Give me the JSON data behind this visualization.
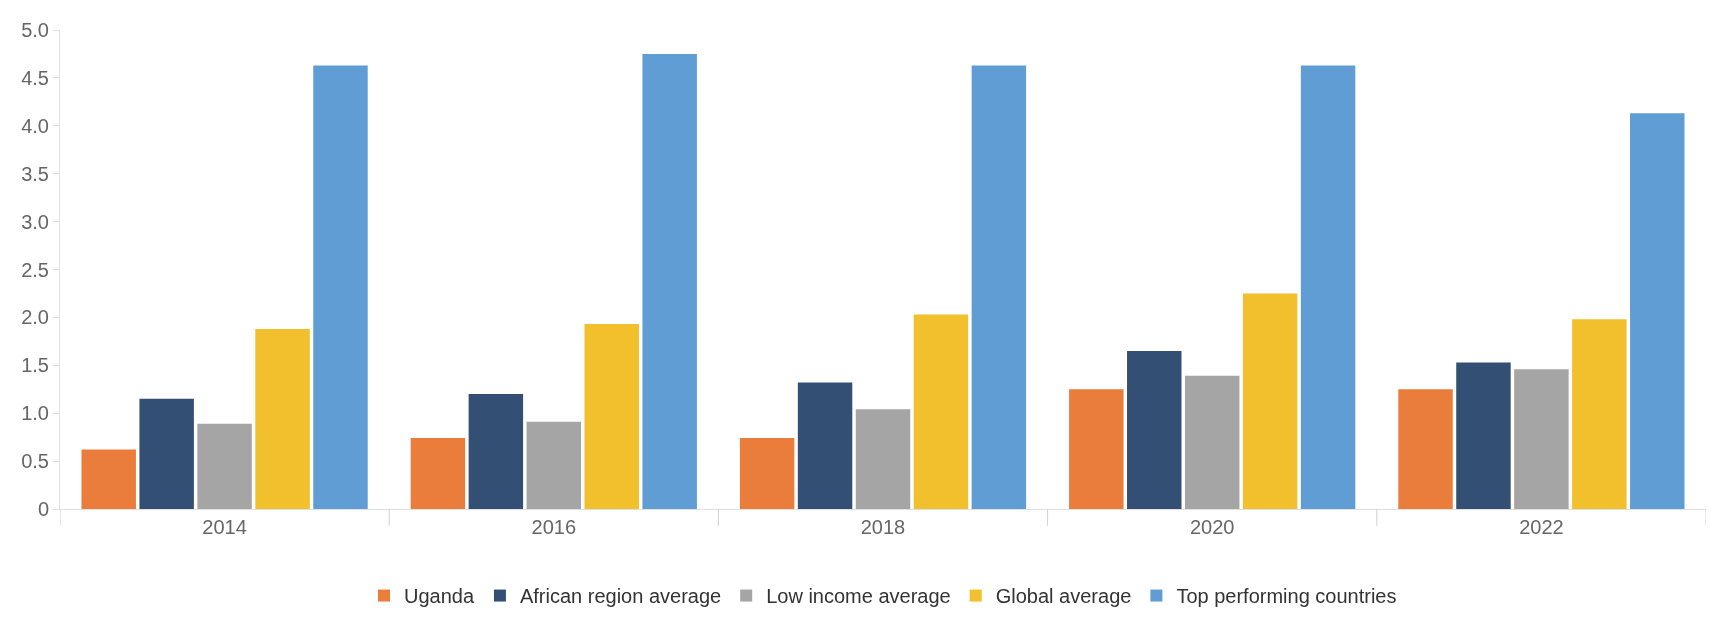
{
  "chart_data": {
    "type": "bar",
    "categories": [
      "2014",
      "2016",
      "2018",
      "2020",
      "2022"
    ],
    "series": [
      {
        "name": "Uganda",
        "color": "#ea7d3c",
        "values": [
          0.62,
          0.74,
          0.74,
          1.25,
          1.25
        ]
      },
      {
        "name": "African region average",
        "color": "#344f74",
        "values": [
          1.15,
          1.2,
          1.32,
          1.65,
          1.53
        ]
      },
      {
        "name": "Low income average",
        "color": "#a5a5a5",
        "values": [
          0.89,
          0.91,
          1.04,
          1.39,
          1.46
        ]
      },
      {
        "name": "Global average",
        "color": "#f2bf2d",
        "values": [
          1.88,
          1.93,
          2.03,
          2.25,
          1.98
        ]
      },
      {
        "name": "Top performing countries",
        "color": "#5f9dd4",
        "values": [
          4.63,
          4.75,
          4.63,
          4.63,
          4.13
        ]
      }
    ],
    "ylim": [
      0,
      5.0
    ],
    "yticks": [
      0,
      {
        "value": 0.5,
        "label": "0.5"
      },
      {
        "value": 1,
        "label": "1.0"
      },
      {
        "value": 1.5,
        "label": "1.5"
      },
      {
        "value": 2,
        "label": "2.0"
      },
      {
        "value": 2.5,
        "label": "2.5"
      },
      {
        "value": 3,
        "label": "3.0"
      },
      {
        "value": 3.5,
        "label": "3.5"
      },
      {
        "value": 4,
        "label": "4.0"
      },
      {
        "value": 4.5,
        "label": "4.5"
      },
      {
        "value": 5,
        "label": "5.0"
      }
    ],
    "legend": "bottom"
  }
}
